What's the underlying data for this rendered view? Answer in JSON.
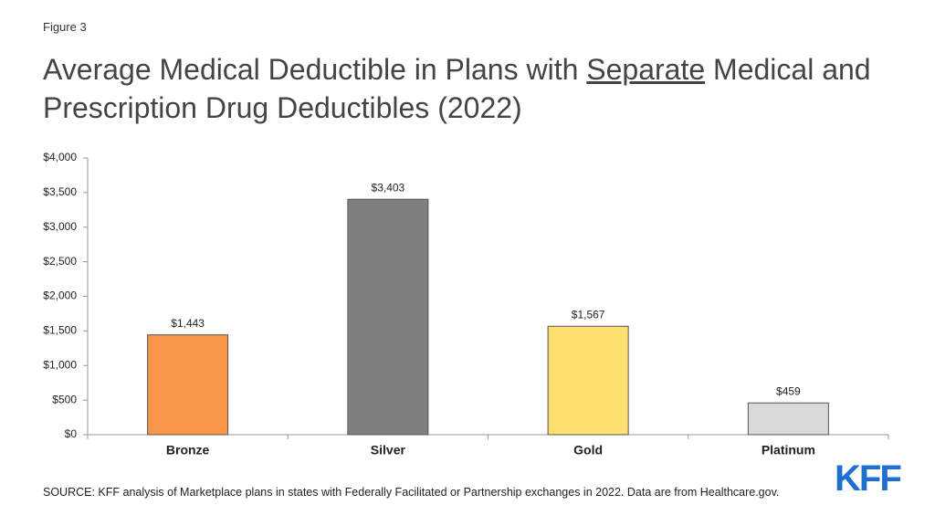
{
  "figure_label": "Figure 3",
  "chart_data": {
    "type": "bar",
    "title": [
      "Average Medical Deductible in Plans with ",
      "Separate",
      " Medical and Prescription Drug Deductibles (2022)"
    ],
    "categories": [
      "Bronze",
      "Silver",
      "Gold",
      "Platinum"
    ],
    "values": [
      1443,
      3403,
      1567,
      459
    ],
    "value_labels": [
      "$1,443",
      "$3,403",
      "$1,567",
      "$459"
    ],
    "colors": [
      "#f79646",
      "#7f7f7f",
      "#ffe06e",
      "#d9d9d9"
    ],
    "ylim": [
      0,
      4000
    ],
    "yticks": [
      {
        "value": 0,
        "label": "$0"
      },
      {
        "value": 500,
        "label": "$500"
      },
      {
        "value": 1000,
        "label": "$1,000"
      },
      {
        "value": 1500,
        "label": "$1,500"
      },
      {
        "value": 2000,
        "label": "$2,000"
      },
      {
        "value": 2500,
        "label": "$2,500"
      },
      {
        "value": 3000,
        "label": "$3,000"
      },
      {
        "value": 3500,
        "label": "$3,500"
      },
      {
        "value": 4000,
        "label": "$4,000"
      }
    ],
    "grid": false
  },
  "source": "SOURCE: KFF analysis of Marketplace plans in states with Federally Facilitated or Partnership exchanges in 2022. Data are from Healthcare.gov.",
  "logo": "KFF"
}
